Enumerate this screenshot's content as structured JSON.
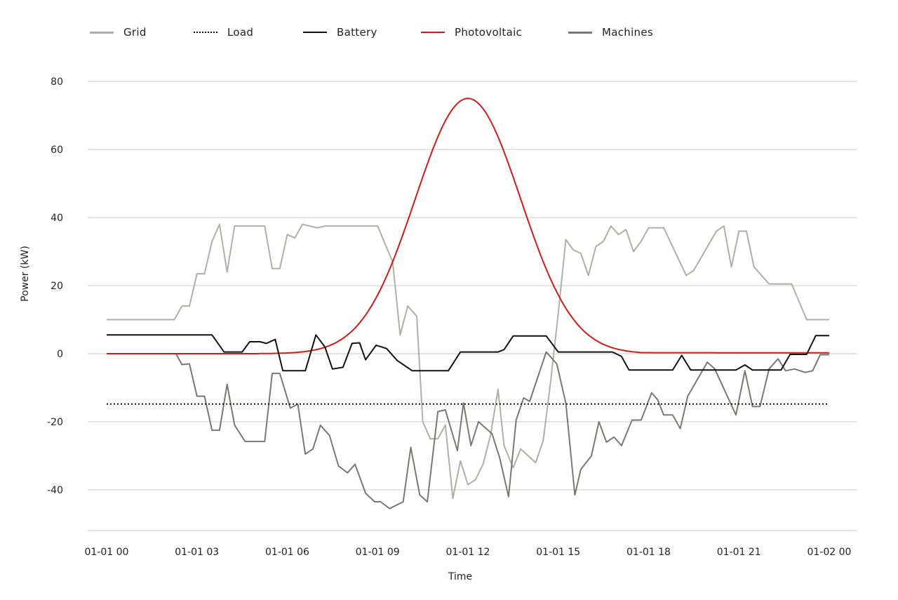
{
  "chart_data": {
    "type": "line",
    "title": "",
    "xlabel": "Time",
    "ylabel": "Power (kW)",
    "ylim": [
      -52,
      82
    ],
    "xlim": [
      0,
      24
    ],
    "grid": "horizontal",
    "legend_position": "top-left",
    "x_ticks": [
      {
        "hour": 0,
        "label": "01-01 00"
      },
      {
        "hour": 3,
        "label": "01-01 03"
      },
      {
        "hour": 6,
        "label": "01-01 06"
      },
      {
        "hour": 9,
        "label": "01-01 09"
      },
      {
        "hour": 12,
        "label": "01-01 12"
      },
      {
        "hour": 15,
        "label": "01-01 15"
      },
      {
        "hour": 18,
        "label": "01-01 18"
      },
      {
        "hour": 21,
        "label": "01-01 21"
      },
      {
        "hour": 24,
        "label": "01-02 00"
      }
    ],
    "y_ticks": [
      80,
      60,
      40,
      20,
      0,
      -20,
      -40
    ],
    "series": [
      {
        "name": "Grid",
        "color": "#b1ada9",
        "dash": "solid",
        "width": 2,
        "points": [
          [
            0,
            10
          ],
          [
            2.25,
            10
          ],
          [
            2.5,
            14
          ],
          [
            2.75,
            14
          ],
          [
            3,
            23.5
          ],
          [
            3.25,
            23.5
          ],
          [
            3.5,
            33
          ],
          [
            3.75,
            38
          ],
          [
            4,
            24
          ],
          [
            4.25,
            37.5
          ],
          [
            5.25,
            37.5
          ],
          [
            5.5,
            25
          ],
          [
            5.75,
            25
          ],
          [
            6,
            35
          ],
          [
            6.25,
            34
          ],
          [
            6.5,
            38
          ],
          [
            7,
            37
          ],
          [
            7.25,
            37.5
          ],
          [
            9,
            37.5
          ],
          [
            9.5,
            27
          ],
          [
            9.75,
            5.5
          ],
          [
            10,
            14
          ],
          [
            10.3,
            11
          ],
          [
            10.5,
            -20
          ],
          [
            10.75,
            -25
          ],
          [
            11,
            -25
          ],
          [
            11.25,
            -21
          ],
          [
            11.5,
            -42.5
          ],
          [
            11.75,
            -31.5
          ],
          [
            12,
            -38.5
          ],
          [
            12.25,
            -37
          ],
          [
            12.5,
            -32.5
          ],
          [
            12.75,
            -24
          ],
          [
            13,
            -10.5
          ],
          [
            13.2,
            -27
          ],
          [
            13.5,
            -33.5
          ],
          [
            13.75,
            -28
          ],
          [
            14.25,
            -32
          ],
          [
            14.5,
            -25.5
          ],
          [
            14.75,
            -8
          ],
          [
            15,
            12
          ],
          [
            15.25,
            33.5
          ],
          [
            15.5,
            30.5
          ],
          [
            15.75,
            29.5
          ],
          [
            16,
            23
          ],
          [
            16.25,
            31.5
          ],
          [
            16.5,
            33
          ],
          [
            16.75,
            37.5
          ],
          [
            17,
            35
          ],
          [
            17.25,
            36.5
          ],
          [
            17.5,
            30
          ],
          [
            17.75,
            33
          ],
          [
            18,
            37
          ],
          [
            18.5,
            37
          ],
          [
            19.25,
            23
          ],
          [
            19.5,
            24.5
          ],
          [
            20.25,
            36
          ],
          [
            20.5,
            37.5
          ],
          [
            20.75,
            25.5
          ],
          [
            21,
            36
          ],
          [
            21.25,
            36
          ],
          [
            21.5,
            25.5
          ],
          [
            22,
            20.5
          ],
          [
            22.75,
            20.5
          ],
          [
            23.25,
            10
          ],
          [
            24,
            10
          ]
        ]
      },
      {
        "name": "Load",
        "color": "#111111",
        "dash": "dotted",
        "width": 2,
        "points": [
          [
            0,
            -14.8
          ],
          [
            24,
            -14.8
          ]
        ]
      },
      {
        "name": "Battery",
        "color": "#111111",
        "dash": "solid",
        "width": 2,
        "points": [
          [
            0,
            5.5
          ],
          [
            3.5,
            5.5
          ],
          [
            3.9,
            0.5
          ],
          [
            4.5,
            0.5
          ],
          [
            4.75,
            3.5
          ],
          [
            5.1,
            3.5
          ],
          [
            5.3,
            3
          ],
          [
            5.6,
            4.2
          ],
          [
            5.85,
            -5
          ],
          [
            6.6,
            -5
          ],
          [
            6.95,
            5.5
          ],
          [
            7.25,
            2
          ],
          [
            7.5,
            -4.5
          ],
          [
            7.85,
            -4
          ],
          [
            8.15,
            3
          ],
          [
            8.4,
            3.2
          ],
          [
            8.6,
            -1.8
          ],
          [
            8.95,
            2.5
          ],
          [
            9.3,
            1.5
          ],
          [
            9.65,
            -2
          ],
          [
            10.15,
            -5
          ],
          [
            11.35,
            -5
          ],
          [
            11.75,
            0.5
          ],
          [
            13,
            0.5
          ],
          [
            13.2,
            1.2
          ],
          [
            13.5,
            5.2
          ],
          [
            14.6,
            5.2
          ],
          [
            15,
            0.5
          ],
          [
            16.8,
            0.5
          ],
          [
            17.1,
            -0.8
          ],
          [
            17.35,
            -4.8
          ],
          [
            18.8,
            -4.8
          ],
          [
            19.1,
            -0.5
          ],
          [
            19.4,
            -4.8
          ],
          [
            20.9,
            -4.8
          ],
          [
            21.2,
            -3.3
          ],
          [
            21.45,
            -4.8
          ],
          [
            22.4,
            -4.8
          ],
          [
            22.7,
            -0.2
          ],
          [
            23.25,
            -0.2
          ],
          [
            23.55,
            5.3
          ],
          [
            24,
            5.3
          ]
        ]
      },
      {
        "name": "Photovoltaic",
        "color": "#d21b1b",
        "dash": "solid",
        "width": 2,
        "peak_hour": 12.0,
        "peak_value": 75,
        "sigma_hours": 1.75,
        "start_hour": 5.0,
        "tail_value": 0.3,
        "points": [
          [
            0,
            0
          ],
          [
            5,
            0
          ],
          [
            6,
            0.8
          ],
          [
            7,
            4
          ],
          [
            8,
            14
          ],
          [
            9,
            30
          ],
          [
            10,
            52
          ],
          [
            11,
            69
          ],
          [
            12,
            75
          ],
          [
            13,
            69
          ],
          [
            14,
            52
          ],
          [
            15,
            30
          ],
          [
            16,
            13
          ],
          [
            17,
            4
          ],
          [
            18,
            1.2
          ],
          [
            19,
            0.6
          ],
          [
            21,
            0.3
          ],
          [
            24,
            -0.2
          ]
        ]
      },
      {
        "name": "Machines",
        "color": "#7a7874",
        "dash": "solid",
        "width": 2,
        "points": [
          [
            0,
            0
          ],
          [
            2.3,
            0
          ],
          [
            2.5,
            -3.2
          ],
          [
            2.75,
            -3
          ],
          [
            3,
            -12.5
          ],
          [
            3.25,
            -12.5
          ],
          [
            3.5,
            -22.5
          ],
          [
            3.75,
            -22.5
          ],
          [
            4,
            -9
          ],
          [
            4.25,
            -21
          ],
          [
            4.6,
            -25.8
          ],
          [
            5.25,
            -25.8
          ],
          [
            5.5,
            -5.8
          ],
          [
            5.75,
            -5.8
          ],
          [
            6.1,
            -16
          ],
          [
            6.35,
            -14.8
          ],
          [
            6.6,
            -29.5
          ],
          [
            6.85,
            -28
          ],
          [
            7.1,
            -21
          ],
          [
            7.4,
            -24
          ],
          [
            7.7,
            -33
          ],
          [
            8,
            -35
          ],
          [
            8.25,
            -32.5
          ],
          [
            8.6,
            -41
          ],
          [
            8.9,
            -43.5
          ],
          [
            9.1,
            -43.5
          ],
          [
            9.4,
            -45.5
          ],
          [
            9.85,
            -43.5
          ],
          [
            10.1,
            -27.5
          ],
          [
            10.4,
            -41.5
          ],
          [
            10.65,
            -43.5
          ],
          [
            11,
            -17
          ],
          [
            11.25,
            -16.5
          ],
          [
            11.65,
            -28.5
          ],
          [
            11.85,
            -14.5
          ],
          [
            12.1,
            -27
          ],
          [
            12.35,
            -20
          ],
          [
            12.8,
            -23.5
          ],
          [
            13.05,
            -30.5
          ],
          [
            13.35,
            -42
          ],
          [
            13.6,
            -19.5
          ],
          [
            13.85,
            -13
          ],
          [
            14.05,
            -14
          ],
          [
            14.6,
            0.5
          ],
          [
            14.95,
            -3
          ],
          [
            15.25,
            -14.5
          ],
          [
            15.55,
            -41.5
          ],
          [
            15.75,
            -34
          ],
          [
            16.1,
            -30
          ],
          [
            16.35,
            -20
          ],
          [
            16.6,
            -26
          ],
          [
            16.85,
            -24.5
          ],
          [
            17.1,
            -27
          ],
          [
            17.45,
            -19.5
          ],
          [
            17.75,
            -19.5
          ],
          [
            18.1,
            -11.5
          ],
          [
            18.3,
            -13.5
          ],
          [
            18.5,
            -18
          ],
          [
            18.8,
            -18
          ],
          [
            19.05,
            -22
          ],
          [
            19.3,
            -12.5
          ],
          [
            19.95,
            -2.5
          ],
          [
            20.2,
            -4.5
          ],
          [
            20.9,
            -18
          ],
          [
            21.2,
            -5
          ],
          [
            21.45,
            -15.5
          ],
          [
            21.7,
            -15.5
          ],
          [
            22,
            -4.5
          ],
          [
            22.3,
            -1.5
          ],
          [
            22.55,
            -5
          ],
          [
            22.85,
            -4.5
          ],
          [
            23.2,
            -5.5
          ],
          [
            23.45,
            -5
          ],
          [
            23.7,
            -0.3
          ],
          [
            24,
            -0.3
          ]
        ]
      }
    ]
  },
  "legend": {
    "items": [
      {
        "label": "Grid",
        "color": "#b1ada9",
        "dash": "solid"
      },
      {
        "label": "Load",
        "color": "#111111",
        "dash": "dotted"
      },
      {
        "label": "Battery",
        "color": "#111111",
        "dash": "solid"
      },
      {
        "label": "Photovoltaic",
        "color": "#d21b1b",
        "dash": "solid"
      },
      {
        "label": "Machines",
        "color": "#7a7874",
        "dash": "solid"
      }
    ]
  },
  "axes": {
    "x_title": "Time",
    "y_title": "Power (kW)",
    "gridline_color": "#c8c8c8"
  }
}
